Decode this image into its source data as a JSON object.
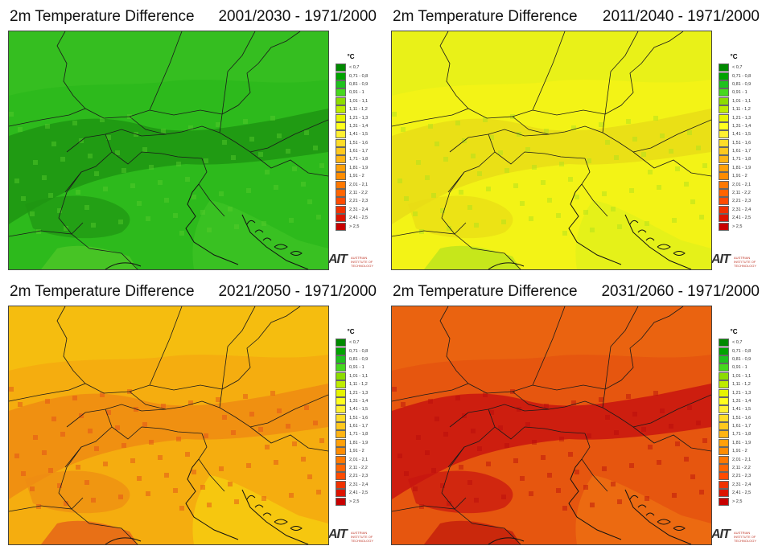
{
  "panels": [
    {
      "title": "2m Temperature Difference",
      "period": "2001/2030 - 1971/2000",
      "palette": {
        "base": "#2dba1c",
        "dark": "#1f9512",
        "light": "#44c628",
        "accent": "#58cc2c"
      }
    },
    {
      "title": "2m Temperature Difference",
      "period": "2011/2040 - 1971/2000",
      "palette": {
        "base": "#f3f316",
        "dark": "#e8dc16",
        "light": "#d8ef1e",
        "accent": "#a8df20"
      }
    },
    {
      "title": "2m Temperature Difference",
      "period": "2021/2050 - 1971/2000",
      "palette": {
        "base": "#f5ad0f",
        "dark": "#ee8b12",
        "light": "#f5dc10",
        "accent": "#e0481a"
      }
    },
    {
      "title": "2m Temperature Difference",
      "period": "2031/2060 - 1971/2000",
      "palette": {
        "base": "#e6560f",
        "dark": "#c8140f",
        "light": "#f07c14",
        "accent": "#b80a0a"
      }
    }
  ],
  "legend": {
    "unit": "°C",
    "items": [
      {
        "label": "< 0,7",
        "color": "#008a00"
      },
      {
        "label": "0,71 - 0,8",
        "color": "#00a400"
      },
      {
        "label": "0,81 - 0,9",
        "color": "#1ec21e"
      },
      {
        "label": "0,91 - 1",
        "color": "#46d81e"
      },
      {
        "label": "1,01 - 1,1",
        "color": "#8cdc00"
      },
      {
        "label": "1,11 - 1,2",
        "color": "#beec00"
      },
      {
        "label": "1,21 - 1,3",
        "color": "#e6f400"
      },
      {
        "label": "1,31 - 1,4",
        "color": "#ffff1e"
      },
      {
        "label": "1,41 - 1,5",
        "color": "#fff032"
      },
      {
        "label": "1,51 - 1,6",
        "color": "#ffdc28"
      },
      {
        "label": "1,61 - 1,7",
        "color": "#ffc81e"
      },
      {
        "label": "1,71 - 1,8",
        "color": "#ffb414"
      },
      {
        "label": "1,81 - 1,9",
        "color": "#ffa00a"
      },
      {
        "label": "1,91 - 2",
        "color": "#ff8c00"
      },
      {
        "label": "2,01 - 2,1",
        "color": "#ff7800"
      },
      {
        "label": "2,11 - 2,2",
        "color": "#ff6400"
      },
      {
        "label": "2,21 - 2,3",
        "color": "#ff4b00"
      },
      {
        "label": "2,31 - 2,4",
        "color": "#f03200"
      },
      {
        "label": "2,41 - 2,5",
        "color": "#dc1400"
      },
      {
        "label": "> 2,5",
        "color": "#c80000"
      }
    ]
  },
  "logo": {
    "mark": "AIT",
    "text": "AUSTRIAN INSTITUTE OF TECHNOLOGY"
  }
}
